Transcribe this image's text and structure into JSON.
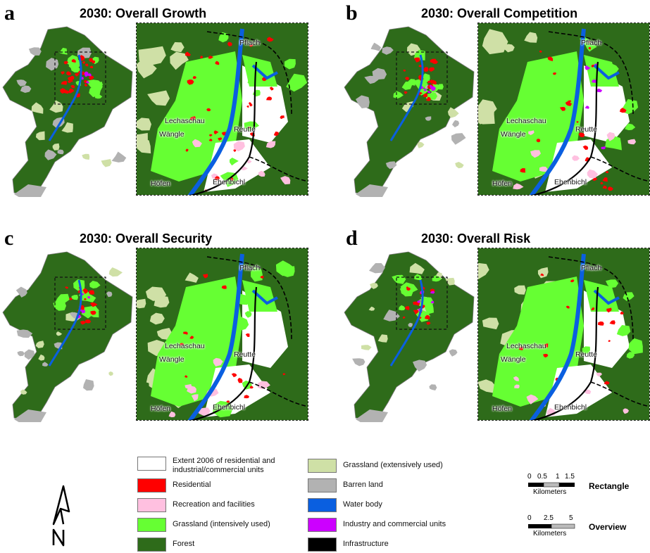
{
  "panels": [
    {
      "letter": "a",
      "title": "2030: Overall Growth"
    },
    {
      "letter": "b",
      "title": "2030: Overall Competition"
    },
    {
      "letter": "c",
      "title": "2030: Overall Security"
    },
    {
      "letter": "d",
      "title": "2030: Overall Risk"
    }
  ],
  "places": [
    "Pflach",
    "Lechaschau",
    "Reutte",
    "Wängle",
    "Höfen",
    "Ehenbichl"
  ],
  "legend": {
    "items": [
      {
        "label": "Extent 2006 of residential and industrial/commercial units",
        "color": "#ffffff"
      },
      {
        "label": "Residential",
        "color": "#ff0000"
      },
      {
        "label": "Recreation and facilities",
        "color": "#ffc0e0"
      },
      {
        "label": "Grassland (intensively used)",
        "color": "#66ff33"
      },
      {
        "label": "Forest",
        "color": "#2e6b1a"
      },
      {
        "label": "Grassland (extensively used)",
        "color": "#cfe0a6"
      },
      {
        "label": "Barren land",
        "color": "#b2b2b2"
      },
      {
        "label": "Water body",
        "color": "#0a5fe0"
      },
      {
        "label": "Industry and commercial units",
        "color": "#cc00ff"
      },
      {
        "label": "Infrastructure",
        "color": "#000000"
      }
    ]
  },
  "scales": [
    {
      "ticks": [
        "0",
        "0.5",
        "1",
        "1.5"
      ],
      "unit": "Kilometers",
      "title": "Rectangle"
    },
    {
      "ticks": [
        "0",
        "2.5",
        "5"
      ],
      "unit": "Kilometers",
      "title": "Overview"
    }
  ],
  "colors": {
    "forest": "#2e6b1a",
    "grass_int": "#66ff33",
    "grass_ext": "#cfe0a6",
    "barren": "#b2b2b2",
    "water": "#0a5fe0",
    "residential": "#ff0000",
    "recreation": "#ffc0e0",
    "industry": "#cc00ff"
  }
}
